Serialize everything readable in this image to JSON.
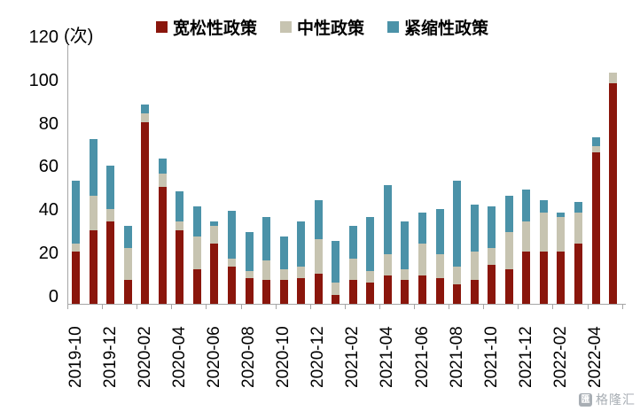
{
  "legend": {
    "items": [
      {
        "label": "宽松性政策",
        "color": "#8a160c"
      },
      {
        "label": "中性政策",
        "color": "#c7c4b1"
      },
      {
        "label": "紧缩性政策",
        "color": "#4b92a8"
      }
    ]
  },
  "y_axis": {
    "unit_label": "(次)",
    "ticks": [
      0,
      20,
      40,
      60,
      80,
      100,
      120
    ]
  },
  "watermark": {
    "text": "格隆汇",
    "logo_glyph": "匯"
  },
  "chart_data": {
    "type": "bar",
    "stacked": true,
    "title": "",
    "xlabel": "",
    "ylabel": "(次)",
    "ylim": [
      0,
      120
    ],
    "y_tick_step": 20,
    "grid": false,
    "legend_position": "top",
    "x_label_every": 2,
    "categories": [
      "2019-10",
      "2019-11",
      "2019-12",
      "2020-01",
      "2020-02",
      "2020-03",
      "2020-04",
      "2020-05",
      "2020-06",
      "2020-07",
      "2020-08",
      "2020-09",
      "2020-10",
      "2020-11",
      "2020-12",
      "2021-01",
      "2021-02",
      "2021-03",
      "2021-04",
      "2021-05",
      "2021-06",
      "2021-07",
      "2021-08",
      "2021-09",
      "2021-10",
      "2021-11",
      "2021-12",
      "2022-01",
      "2022-02",
      "2022-03",
      "2022-04",
      "2022-05"
    ],
    "series": [
      {
        "name": "宽松性政策",
        "color": "#8a160c",
        "values": [
          24,
          34,
          38,
          11,
          84,
          54,
          34,
          16,
          28,
          17,
          12,
          11,
          11,
          12,
          14,
          4,
          11,
          10,
          13,
          11,
          13,
          12,
          9,
          11,
          18,
          16,
          24,
          24,
          24,
          28,
          70,
          102
        ]
      },
      {
        "name": "中性政策",
        "color": "#c7c4b1",
        "values": [
          4,
          16,
          6,
          15,
          4,
          6,
          4,
          15,
          8,
          4,
          3,
          9,
          5,
          5,
          16,
          6,
          10,
          5,
          10,
          5,
          15,
          11,
          8,
          13,
          8,
          17,
          14,
          18,
          16,
          14,
          3,
          5
        ]
      },
      {
        "name": "紧缩性政策",
        "color": "#4b92a8",
        "values": [
          29,
          26,
          20,
          10,
          4,
          7,
          14,
          14,
          2,
          22,
          18,
          20,
          15,
          21,
          18,
          19,
          15,
          25,
          32,
          22,
          14,
          21,
          40,
          22,
          19,
          17,
          15,
          6,
          2,
          5,
          4,
          0
        ]
      }
    ]
  }
}
